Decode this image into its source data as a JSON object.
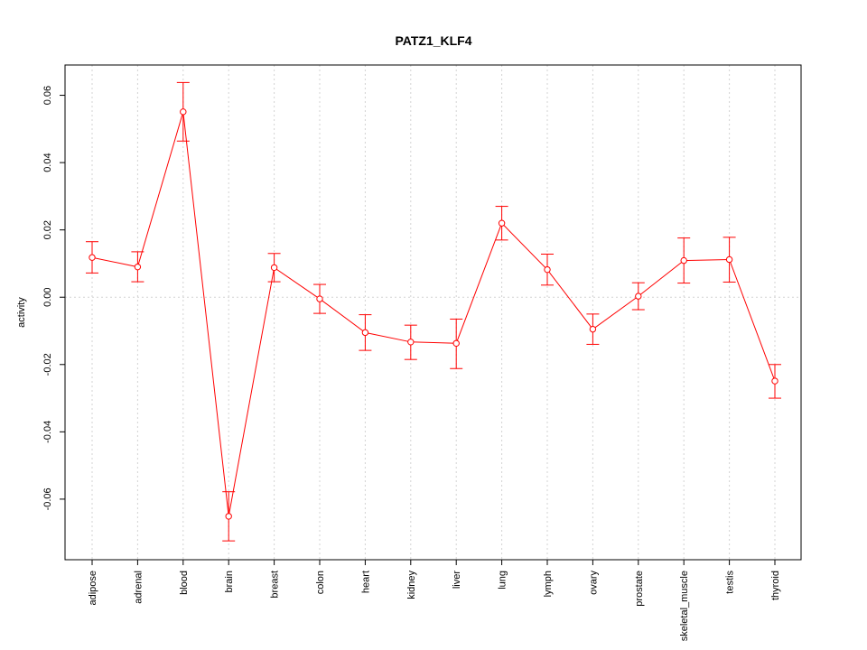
{
  "chart_data": {
    "type": "line",
    "title": "PATZ1_KLF4",
    "xlabel": "",
    "ylabel": "activity",
    "categories": [
      "adipose",
      "adrenal",
      "blood",
      "brain",
      "breast",
      "colon",
      "heart",
      "kidney",
      "liver",
      "lung",
      "lymph",
      "ovary",
      "prostate",
      "skeletal_muscle",
      "testis",
      "thyroid"
    ],
    "series": [
      {
        "values": [
          0.0118,
          0.009,
          0.0551,
          -0.0651,
          0.0088,
          -0.0005,
          -0.0105,
          -0.0133,
          -0.0137,
          0.022,
          0.0082,
          -0.0095,
          0.0003,
          0.0109,
          0.0112,
          -0.0249
        ],
        "error_low": [
          0.0072,
          0.0046,
          0.0464,
          -0.0724,
          0.0046,
          -0.0048,
          -0.0158,
          -0.0185,
          -0.0212,
          0.017,
          0.0036,
          -0.014,
          -0.0037,
          0.0042,
          0.0045,
          -0.03
        ],
        "error_high": [
          0.0165,
          0.0135,
          0.0638,
          -0.0578,
          0.013,
          0.0038,
          -0.0052,
          -0.0083,
          -0.0065,
          0.027,
          0.0128,
          -0.005,
          0.0043,
          0.0176,
          0.0178,
          -0.02
        ]
      }
    ],
    "ylim": [
      -0.078,
      0.069
    ],
    "yticks": [
      -0.06,
      -0.04,
      -0.02,
      0.0,
      0.02,
      0.04,
      0.06
    ],
    "ytick_labels": [
      "-0.06",
      "-0.04",
      "-0.02",
      "0.00",
      "0.02",
      "0.04",
      "0.06"
    ],
    "grid": true,
    "series_color": "#ff0000",
    "grid_color": "#d3d3d3"
  }
}
